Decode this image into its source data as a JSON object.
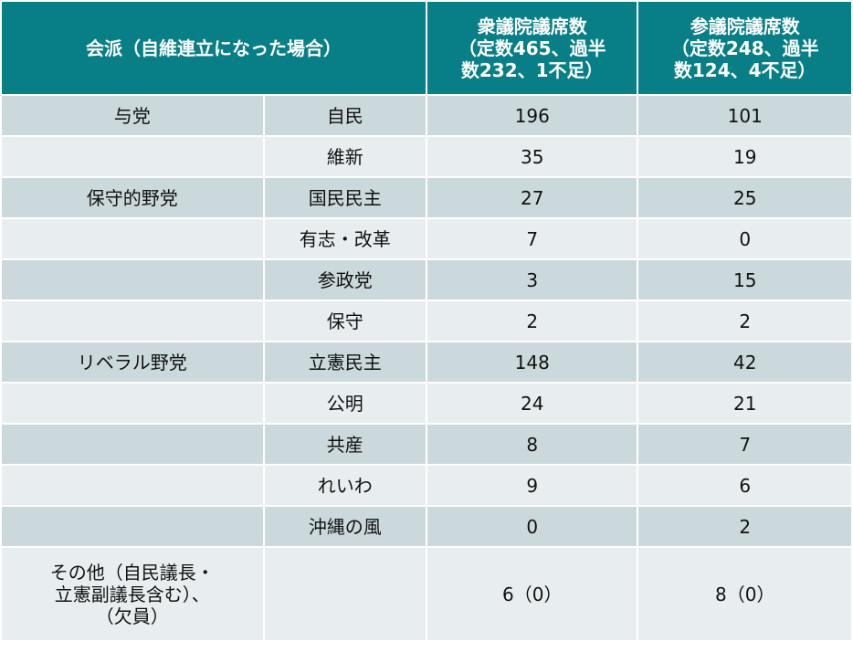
{
  "header": {
    "cells": [
      [
        "会派（自維連立になった場合）"
      ],
      [
        "衆議院議席数",
        "（定数465、過半",
        "数232、1不足）"
      ],
      [
        "参議院議席数",
        "（定数248、過半",
        "数124、4不足）"
      ]
    ]
  },
  "table": {
    "rows": [
      [
        "与党",
        "自民",
        "196",
        "101"
      ],
      [
        null,
        "維新",
        "35",
        "19"
      ],
      [
        "保守的野党",
        "国民民主",
        "27",
        "25"
      ],
      [
        null,
        "有志・改革",
        "7",
        "0"
      ],
      [
        null,
        "参政党",
        "3",
        "15"
      ],
      [
        null,
        "保守",
        "2",
        "2"
      ],
      [
        "リベラル野党",
        "立憲民主",
        "148",
        "42"
      ],
      [
        null,
        "公明",
        "24",
        "21"
      ],
      [
        null,
        "共産",
        "8",
        "7"
      ],
      [
        null,
        "れいわ",
        "9",
        "6"
      ],
      [
        null,
        "沖縄の風",
        "0",
        "2"
      ]
    ],
    "last_row": [
      [
        "その他（自民議長・",
        "立憲副議長含む）、",
        "（欠員）"
      ],
      null,
      "6（0）",
      "8（0）"
    ]
  }
}
